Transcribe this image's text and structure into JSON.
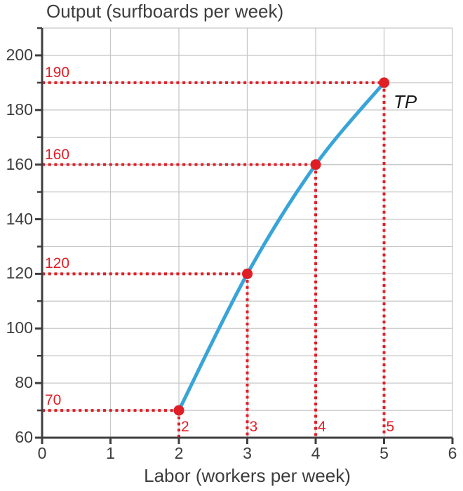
{
  "chart_data": {
    "type": "line",
    "title": "Output (surfboards per week)",
    "xlabel": "Labor (workers per week)",
    "ylabel": "Output (surfboards per week)",
    "curve_label": "TP",
    "series": [
      {
        "name": "TP",
        "x": [
          2,
          3,
          4,
          5
        ],
        "y": [
          70,
          120,
          160,
          190
        ]
      }
    ],
    "points": [
      {
        "x": 2,
        "y": 70,
        "x_label": "2",
        "y_label": "70"
      },
      {
        "x": 3,
        "y": 120,
        "x_label": "3",
        "y_label": "120"
      },
      {
        "x": 4,
        "y": 160,
        "x_label": "4",
        "y_label": "160"
      },
      {
        "x": 5,
        "y": 190,
        "x_label": "5",
        "y_label": "190"
      }
    ],
    "xlim": [
      0,
      6
    ],
    "ylim": [
      60,
      210
    ],
    "x_ticks": [
      0,
      1,
      2,
      3,
      4,
      5,
      6
    ],
    "y_ticks": [
      60,
      80,
      100,
      120,
      140,
      160,
      180,
      200
    ],
    "y_minor_step": 10,
    "grid": true,
    "legend_position": "none",
    "colors": {
      "curve": "#38a4d8",
      "accent": "#e01e26",
      "grid": "#c8c8c8",
      "axis": "#3f3f3f",
      "text": "#3d3d3d",
      "curve_label_color": "#1a1a1a"
    }
  }
}
